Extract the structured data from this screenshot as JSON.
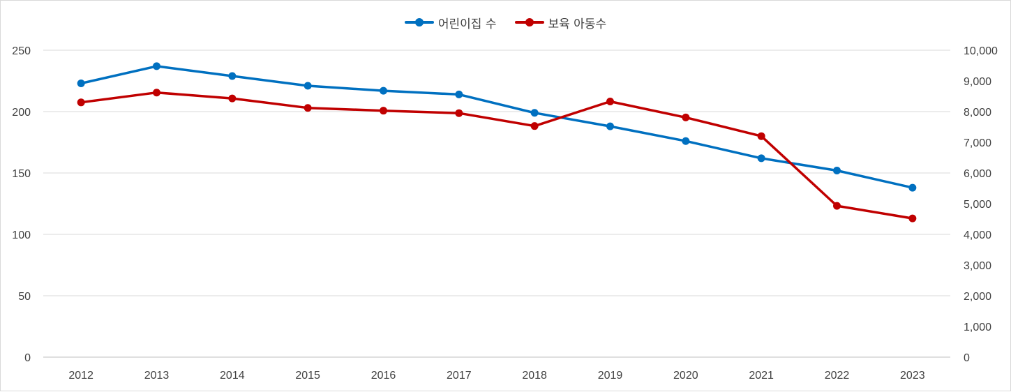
{
  "chart_data": {
    "type": "line",
    "title": "",
    "xlabel": "",
    "ylabel": "",
    "categories": [
      "2012",
      "2013",
      "2014",
      "2015",
      "2016",
      "2017",
      "2018",
      "2019",
      "2020",
      "2021",
      "2022",
      "2023"
    ],
    "series": [
      {
        "name": "어린이집 수",
        "axis": "left",
        "color": "#0070C0",
        "values": [
          223,
          237,
          229,
          221,
          217,
          214,
          199,
          188,
          176,
          162,
          152,
          138
        ]
      },
      {
        "name": "보육 아동수",
        "axis": "right",
        "color": "#C00000",
        "values": [
          8300,
          8620,
          8430,
          8120,
          8030,
          7950,
          7530,
          8330,
          7810,
          7200,
          4930,
          4520
        ]
      }
    ],
    "y_left": {
      "min": 0,
      "max": 250,
      "step": 50,
      "ticks": [
        "0",
        "50",
        "100",
        "150",
        "200",
        "250"
      ]
    },
    "y_right": {
      "min": 0,
      "max": 10000,
      "step": 1000,
      "ticks": [
        "0",
        "1,000",
        "2,000",
        "3,000",
        "4,000",
        "5,000",
        "6,000",
        "7,000",
        "8,000",
        "9,000",
        "10,000"
      ]
    },
    "grid": true,
    "legend_position": "top-center"
  }
}
